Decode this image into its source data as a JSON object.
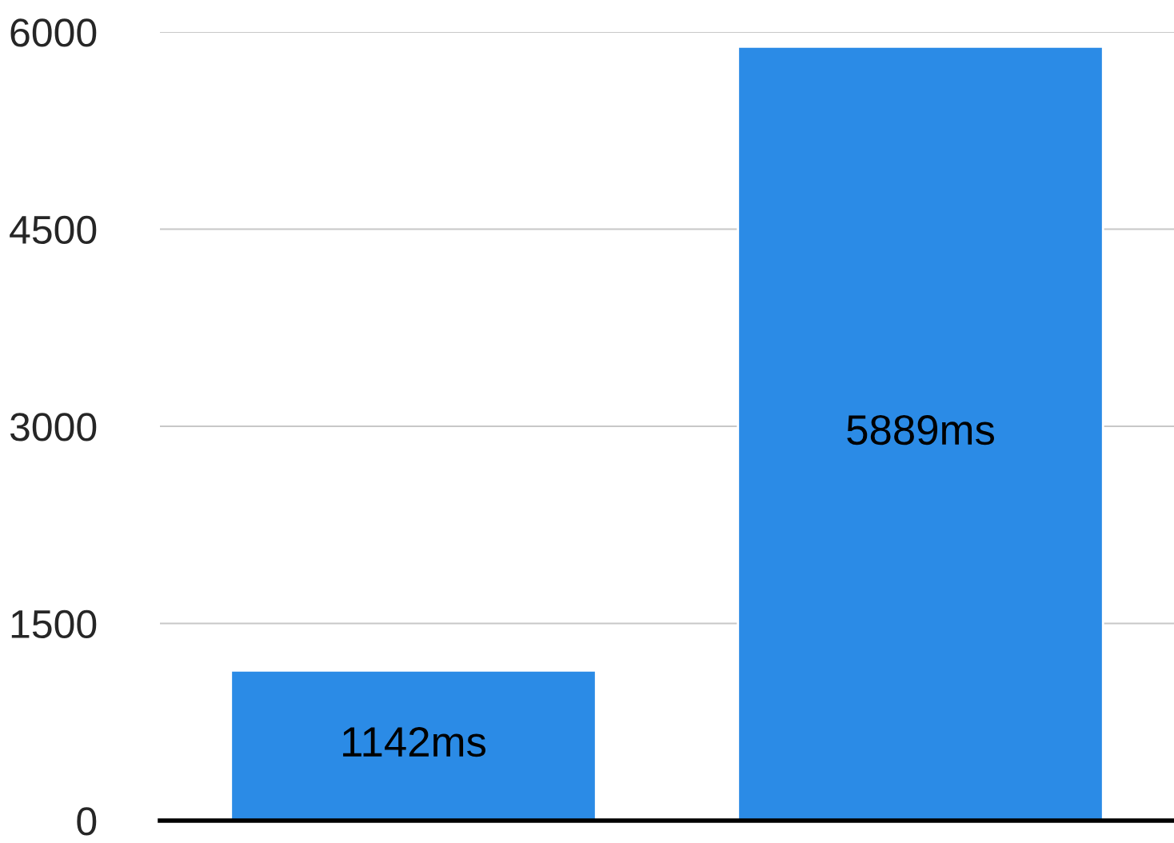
{
  "chart_data": {
    "type": "bar",
    "categories": [
      null,
      null
    ],
    "values": [
      1142,
      5889
    ],
    "value_labels": [
      "1142ms",
      "5889ms"
    ],
    "color": "#2b8be6",
    "ylim": [
      0,
      6000
    ],
    "yticks": [
      0,
      1500,
      3000,
      4500,
      6000
    ],
    "grid": "y",
    "legend": false
  }
}
